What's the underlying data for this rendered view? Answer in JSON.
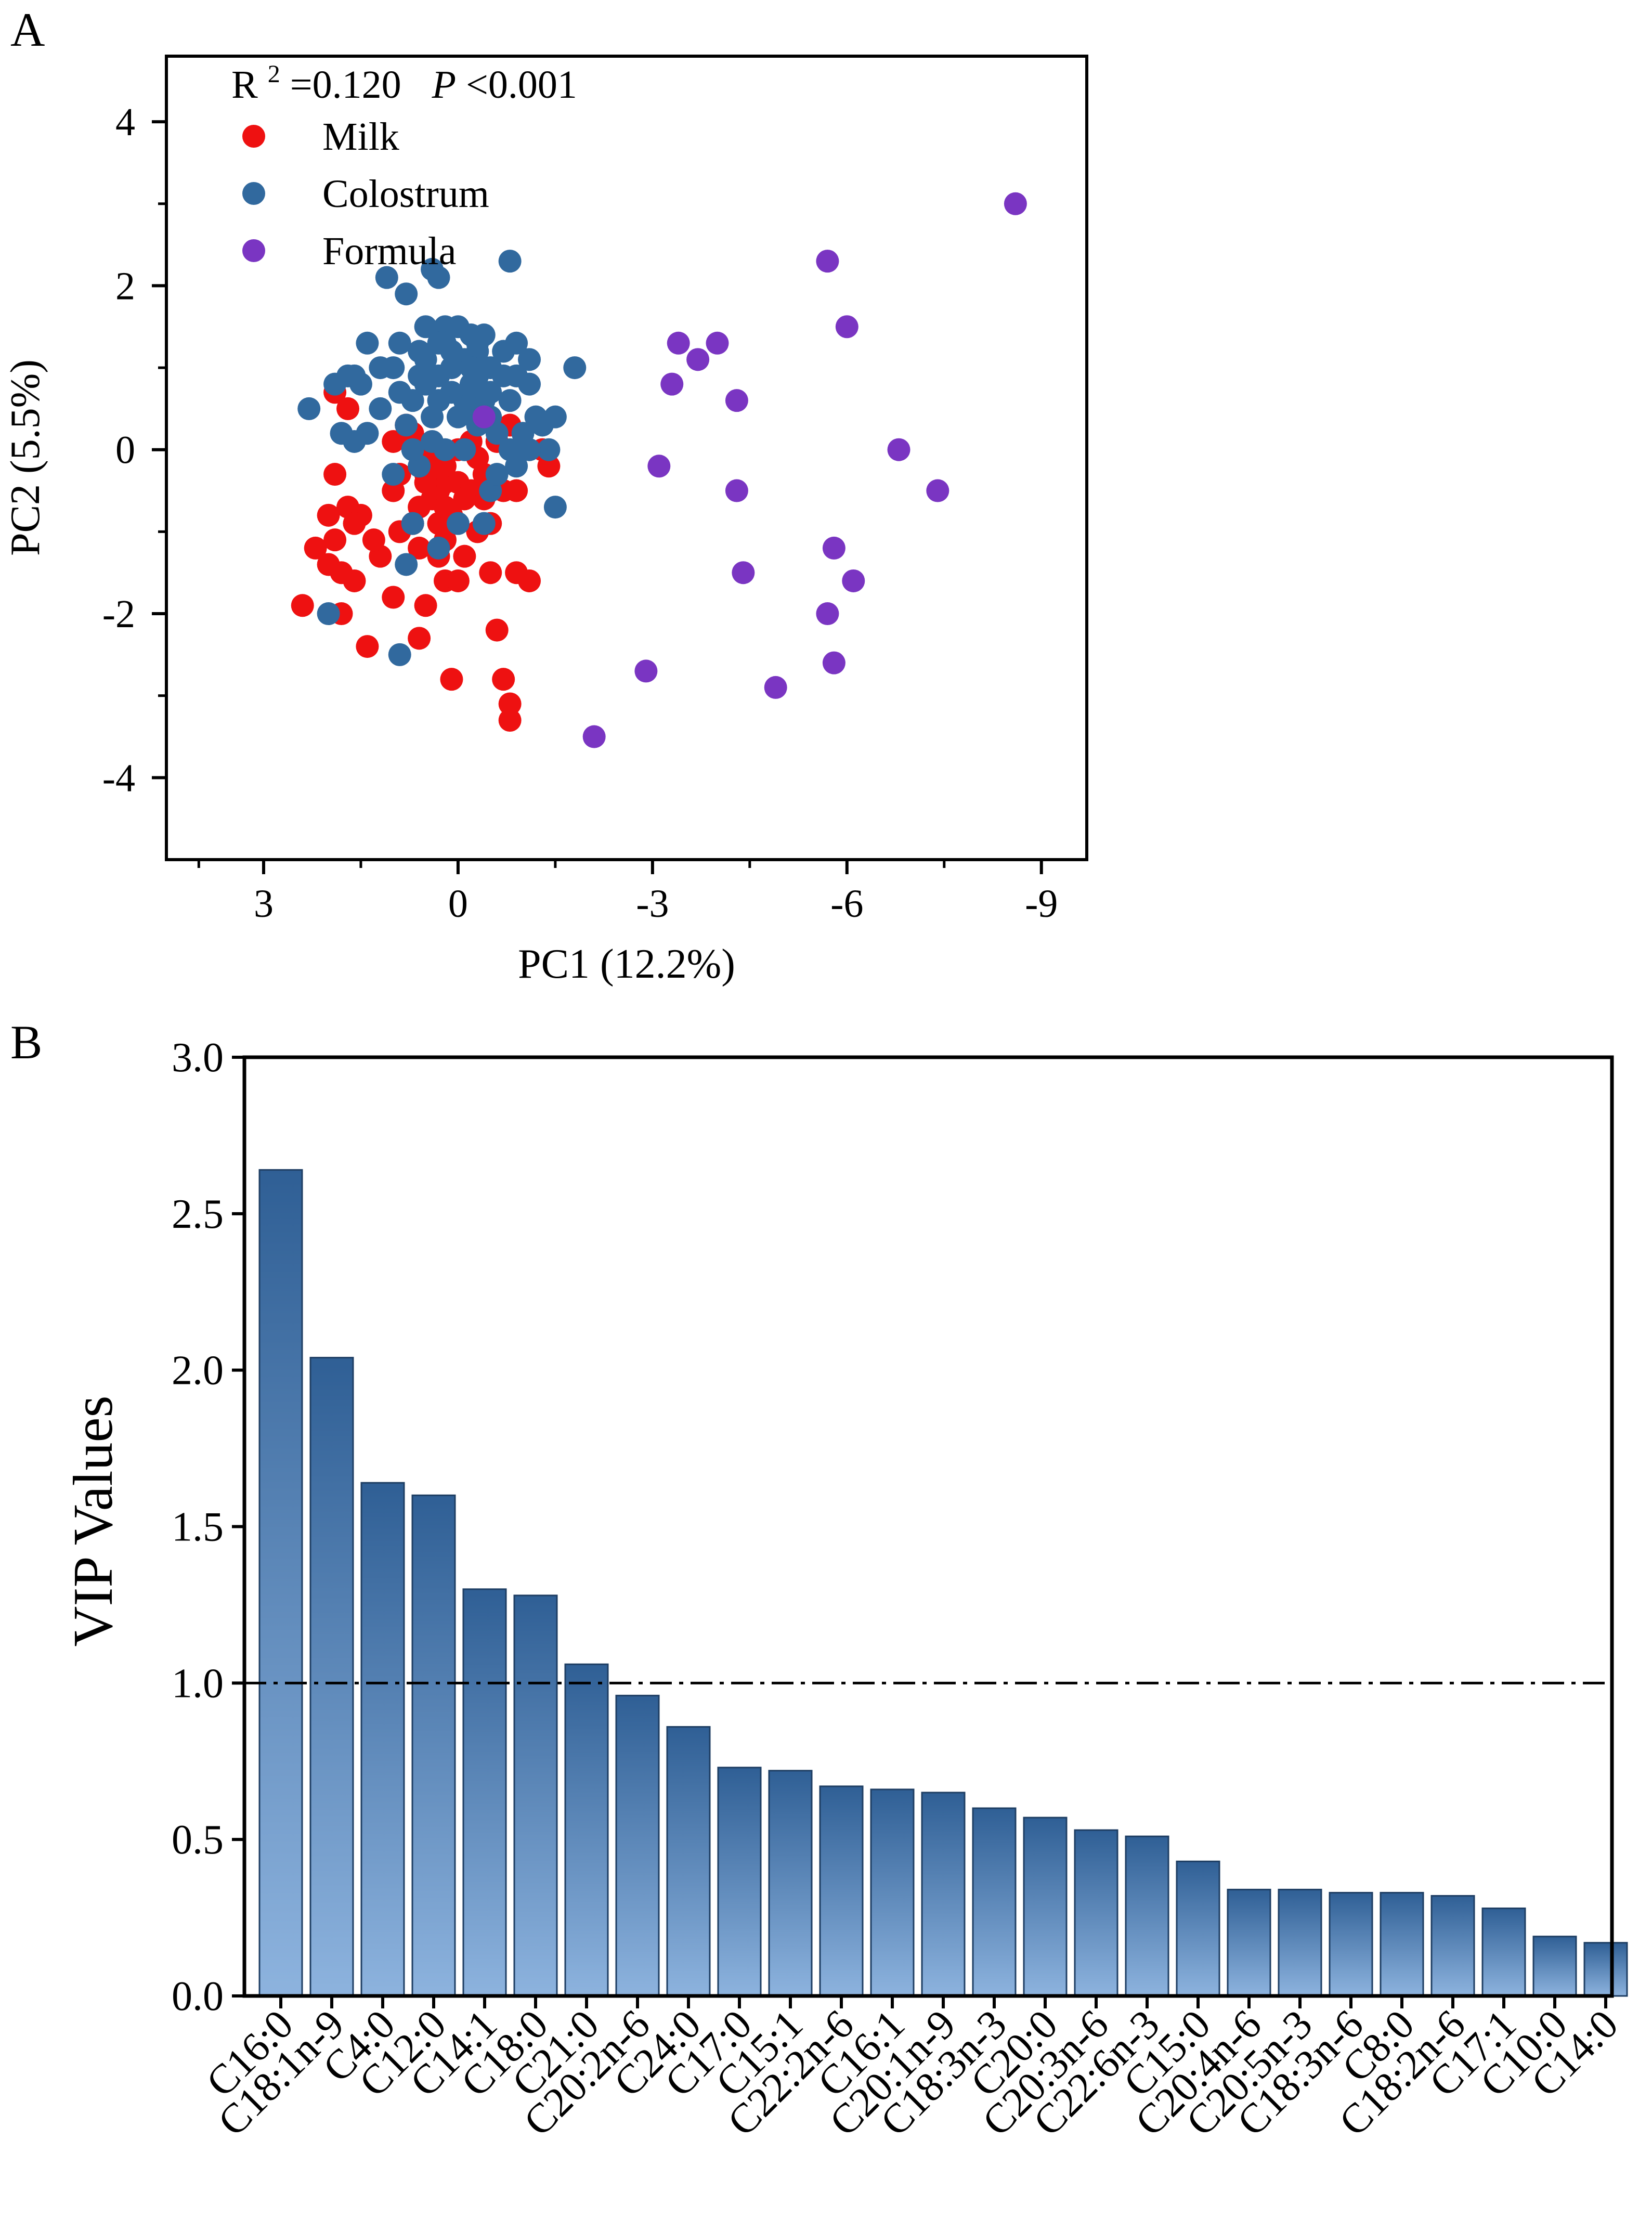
{
  "chart_data": [
    {
      "panel_label": "A",
      "type": "scatter",
      "annotation": {
        "r2_label": "R",
        "r2_sup": "2",
        "r2_value": " =0.120",
        "p_label": "P",
        "p_value": "<0.001"
      },
      "xlabel": "PC1 (12.2%)",
      "ylabel": "PC2 (5.5%)",
      "xlim": [
        4.5,
        -9.7
      ],
      "ylim": [
        -5.0,
        4.8
      ],
      "xticks": [
        3,
        0,
        -3,
        -6,
        -9
      ],
      "xtick_labels": [
        "3",
        "0",
        "-3",
        "-6",
        "-9"
      ],
      "yticks": [
        4,
        2,
        0,
        -2,
        -4
      ],
      "ytick_labels": [
        "4",
        "2",
        "0",
        "-2",
        "-4"
      ],
      "legend": {
        "position": "top-left"
      },
      "series": [
        {
          "name": "Milk",
          "color": "#ee1111",
          "points": [
            [
              2.4,
              -1.9
            ],
            [
              2.2,
              -1.2
            ],
            [
              2.0,
              -1.4
            ],
            [
              1.9,
              -1.1
            ],
            [
              1.8,
              -1.5
            ],
            [
              2.0,
              -0.8
            ],
            [
              1.9,
              -0.3
            ],
            [
              1.7,
              -0.7
            ],
            [
              1.5,
              -0.8
            ],
            [
              1.6,
              -1.6
            ],
            [
              1.4,
              -2.4
            ],
            [
              1.9,
              0.7
            ],
            [
              1.7,
              0.5
            ],
            [
              1.8,
              -2.0
            ],
            [
              1.2,
              -1.3
            ],
            [
              1.0,
              -0.5
            ],
            [
              1.0,
              -1.8
            ],
            [
              0.9,
              -0.3
            ],
            [
              0.8,
              0.3
            ],
            [
              0.7,
              -0.9
            ],
            [
              0.6,
              -2.3
            ],
            [
              0.5,
              -1.9
            ],
            [
              0.6,
              -0.7
            ],
            [
              0.5,
              -0.3
            ],
            [
              0.4,
              -0.6
            ],
            [
              0.3,
              -1.3
            ],
            [
              0.2,
              -1.6
            ],
            [
              0.2,
              -1.1
            ],
            [
              0.2,
              -0.4
            ],
            [
              0.1,
              -2.8
            ],
            [
              0.3,
              -0.9
            ],
            [
              0.0,
              -1.6
            ],
            [
              -0.1,
              -1.3
            ],
            [
              0.3,
              -0.5
            ],
            [
              0.2,
              -0.2
            ],
            [
              0.5,
              -0.4
            ],
            [
              0.4,
              -0.2
            ],
            [
              0.1,
              -0.8
            ],
            [
              0.0,
              -0.4
            ],
            [
              -0.2,
              -0.5
            ],
            [
              -0.3,
              -1.0
            ],
            [
              -0.4,
              -0.6
            ],
            [
              -0.5,
              -1.5
            ],
            [
              -0.6,
              -2.2
            ],
            [
              -0.7,
              -2.8
            ],
            [
              -0.8,
              -3.1
            ],
            [
              -0.8,
              -3.3
            ],
            [
              -0.9,
              -1.5
            ],
            [
              -1.1,
              -1.6
            ],
            [
              -0.4,
              -0.3
            ],
            [
              -0.2,
              0.1
            ],
            [
              -0.6,
              0.1
            ],
            [
              -0.7,
              -0.5
            ],
            [
              -0.9,
              -0.5
            ],
            [
              -0.8,
              0.3
            ],
            [
              -1.3,
              0.0
            ],
            [
              -1.4,
              -0.2
            ],
            [
              -0.3,
              -0.1
            ],
            [
              0.0,
              0.0
            ],
            [
              0.7,
              0.2
            ],
            [
              1.0,
              0.1
            ],
            [
              0.6,
              -1.2
            ],
            [
              1.3,
              -1.1
            ],
            [
              1.6,
              -0.9
            ],
            [
              -0.5,
              -0.9
            ],
            [
              0.2,
              -0.7
            ],
            [
              -0.1,
              -0.6
            ],
            [
              0.4,
              0.0
            ],
            [
              0.9,
              -1.0
            ]
          ]
        },
        {
          "name": "Colostrum",
          "color": "#31699e",
          "points": [
            [
              1.1,
              2.1
            ],
            [
              0.4,
              2.2
            ],
            [
              0.3,
              2.1
            ],
            [
              -0.8,
              2.3
            ],
            [
              0.8,
              1.9
            ],
            [
              0.5,
              1.5
            ],
            [
              0.2,
              1.5
            ],
            [
              0.0,
              1.5
            ],
            [
              -0.2,
              1.4
            ],
            [
              -0.4,
              1.4
            ],
            [
              1.4,
              1.3
            ],
            [
              1.2,
              1.0
            ],
            [
              1.5,
              0.8
            ],
            [
              1.6,
              0.9
            ],
            [
              0.9,
              0.7
            ],
            [
              0.7,
              0.6
            ],
            [
              0.5,
              0.8
            ],
            [
              0.3,
              0.9
            ],
            [
              0.1,
              1.0
            ],
            [
              -0.1,
              1.1
            ],
            [
              -0.3,
              1.3
            ],
            [
              -0.5,
              1.0
            ],
            [
              -0.7,
              1.2
            ],
            [
              -0.9,
              1.3
            ],
            [
              -1.1,
              1.1
            ],
            [
              -1.1,
              0.8
            ],
            [
              -0.8,
              0.6
            ],
            [
              -0.5,
              0.4
            ],
            [
              -0.3,
              0.3
            ],
            [
              -0.1,
              0.0
            ],
            [
              0.2,
              0.0
            ],
            [
              0.4,
              0.1
            ],
            [
              0.8,
              0.3
            ],
            [
              1.2,
              0.5
            ],
            [
              1.4,
              0.2
            ],
            [
              2.3,
              0.5
            ],
            [
              1.8,
              0.2
            ],
            [
              1.7,
              0.9
            ],
            [
              1.0,
              1.0
            ],
            [
              0.6,
              1.2
            ],
            [
              0.3,
              1.3
            ],
            [
              0.1,
              1.2
            ],
            [
              -0.2,
              0.8
            ],
            [
              -0.4,
              0.6
            ],
            [
              -0.6,
              0.2
            ],
            [
              -0.8,
              0.0
            ],
            [
              -0.9,
              -0.2
            ],
            [
              -1.0,
              0.2
            ],
            [
              -1.2,
              0.4
            ],
            [
              -1.3,
              0.3
            ],
            [
              -1.4,
              0.0
            ],
            [
              -1.5,
              0.4
            ],
            [
              -1.8,
              1.0
            ],
            [
              -1.5,
              -0.7
            ],
            [
              0.8,
              -1.4
            ],
            [
              0.7,
              -0.9
            ],
            [
              -0.4,
              -0.9
            ],
            [
              -0.5,
              -0.5
            ],
            [
              2.0,
              -2.0
            ],
            [
              0.9,
              -2.5
            ],
            [
              0.3,
              -1.2
            ],
            [
              0.0,
              -0.9
            ],
            [
              1.0,
              -0.3
            ],
            [
              0.6,
              -0.2
            ],
            [
              0.0,
              0.4
            ],
            [
              -0.2,
              0.5
            ],
            [
              -0.7,
              0.9
            ],
            [
              -0.9,
              0.9
            ],
            [
              -0.3,
              1.2
            ],
            [
              0.2,
              1.3
            ],
            [
              0.5,
              1.1
            ],
            [
              -0.1,
              0.6
            ],
            [
              0.4,
              0.4
            ],
            [
              0.7,
              0.0
            ],
            [
              -0.6,
              -0.3
            ],
            [
              1.6,
              0.1
            ],
            [
              1.9,
              0.8
            ],
            [
              -1.1,
              0.0
            ],
            [
              0.9,
              1.3
            ],
            [
              0.1,
              0.7
            ],
            [
              -0.3,
              0.9
            ],
            [
              -0.5,
              0.7
            ],
            [
              0.6,
              0.9
            ],
            [
              0.3,
              0.6
            ],
            [
              -0.2,
              1.0
            ]
          ]
        },
        {
          "name": "Formula",
          "color": "#7a35c2",
          "points": [
            [
              -8.6,
              3.0
            ],
            [
              -5.7,
              2.3
            ],
            [
              -6.0,
              1.5
            ],
            [
              -3.4,
              1.3
            ],
            [
              -4.0,
              1.3
            ],
            [
              -3.7,
              1.1
            ],
            [
              -3.3,
              0.8
            ],
            [
              -4.3,
              0.6
            ],
            [
              -0.4,
              0.4
            ],
            [
              -6.8,
              0.0
            ],
            [
              -3.1,
              -0.2
            ],
            [
              -7.4,
              -0.5
            ],
            [
              -4.3,
              -0.5
            ],
            [
              -5.8,
              -1.2
            ],
            [
              -4.4,
              -1.5
            ],
            [
              -6.1,
              -1.6
            ],
            [
              -5.7,
              -2.0
            ],
            [
              -5.8,
              -2.6
            ],
            [
              -2.9,
              -2.7
            ],
            [
              -4.9,
              -2.9
            ],
            [
              -2.1,
              -3.5
            ]
          ]
        }
      ]
    },
    {
      "panel_label": "B",
      "type": "bar",
      "ylabel": "VIP Values",
      "xlabel": "",
      "ylim": [
        0.0,
        3.0
      ],
      "yticks": [
        0.0,
        0.5,
        1.0,
        1.5,
        2.0,
        2.5,
        3.0
      ],
      "ytick_labels": [
        "0.0",
        "0.5",
        "1.0",
        "1.5",
        "2.0",
        "2.5",
        "3.0"
      ],
      "threshold": 1.0,
      "bar_colors": {
        "top": "#2f5f95",
        "bottom": "#8db3de"
      },
      "categories": [
        "C16:0",
        "C18:1n-9",
        "C4:0",
        "C12:0",
        "C14:1",
        "C18:0",
        "C21:0",
        "C20:2n-6",
        "C24:0",
        "C17:0",
        "C15:1",
        "C22:2n-6",
        "C16:1",
        "C20:1n-9",
        "C18:3n-3",
        "C20:0",
        "C20:3n-6",
        "C22:6n-3",
        "C15:0",
        "C20:4n-6",
        "C20:5n-3",
        "C18:3n-6",
        "C8:0",
        "C18:2n-6",
        "C17:1",
        "C10:0",
        "C14:0"
      ],
      "values": [
        2.64,
        2.04,
        1.64,
        1.6,
        1.3,
        1.28,
        1.06,
        0.96,
        0.86,
        0.73,
        0.72,
        0.67,
        0.66,
        0.65,
        0.6,
        0.57,
        0.53,
        0.51,
        0.43,
        0.34,
        0.34,
        0.33,
        0.33,
        0.32,
        0.28,
        0.19,
        0.17
      ]
    }
  ]
}
